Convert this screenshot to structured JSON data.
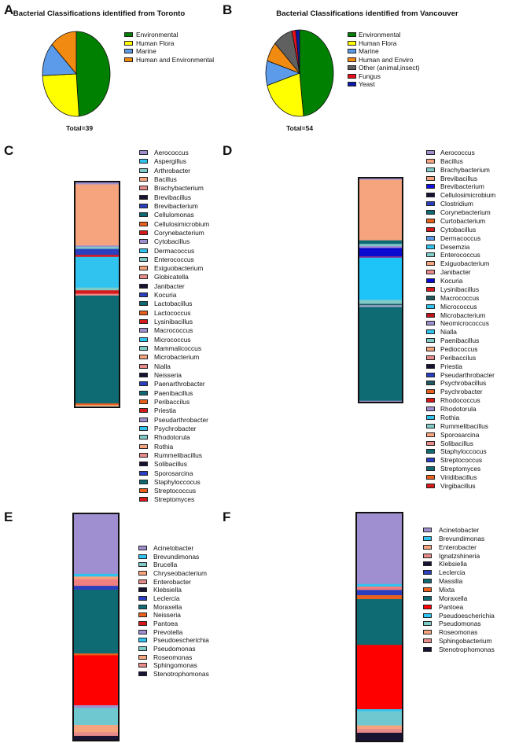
{
  "panels": [
    "A",
    "B",
    "C",
    "D",
    "E",
    "F"
  ],
  "chart_data": [
    {
      "type": "pie",
      "panel": "A",
      "title": "Bacterial Classifications identified from Toronto",
      "total_label": "Total=39",
      "slices": [
        {
          "name": "Environmental",
          "value": 19,
          "color": "#008000"
        },
        {
          "name": "Human Flora",
          "value": 10,
          "color": "#ffff00"
        },
        {
          "name": "Marine",
          "value": 5,
          "color": "#5b9bea"
        },
        {
          "name": "Human and Environmental",
          "value": 5,
          "color": "#f08a10"
        }
      ]
    },
    {
      "type": "pie",
      "panel": "B",
      "title": "Bacterial Classifications identified from Vancouver",
      "total_label": "Total=54",
      "slices": [
        {
          "name": "Environmental",
          "value": 26,
          "color": "#008000"
        },
        {
          "name": "Human Flora",
          "value": 12,
          "color": "#ffff00"
        },
        {
          "name": "Marine",
          "value": 5,
          "color": "#5b9bea"
        },
        {
          "name": "Human and Enviro",
          "value": 4,
          "color": "#f08a10"
        },
        {
          "name": "Other (animal,insect)",
          "value": 5,
          "color": "#606060"
        },
        {
          "name": "Fungus",
          "value": 1,
          "color": "#e8101a"
        },
        {
          "name": "Yeast",
          "value": 1,
          "color": "#0a1aa8"
        }
      ]
    },
    {
      "type": "bar",
      "panel": "C",
      "stacked": true,
      "ylim": [
        0,
        100
      ],
      "legend": [
        {
          "name": "Aerococcus",
          "color": "#a08fd0"
        },
        {
          "name": "Aspergillus",
          "color": "#31c3f0"
        },
        {
          "name": "Arthrobacter",
          "color": "#7ecbc8"
        },
        {
          "name": "Bacillus",
          "color": "#f6a47e"
        },
        {
          "name": "Brachybacterium",
          "color": "#e88a8a"
        },
        {
          "name": "Brevibacillus",
          "color": "#1a1233"
        },
        {
          "name": "Brevibacterium",
          "color": "#2a3fbf"
        },
        {
          "name": "Cellulomonas",
          "color": "#0f6b73"
        },
        {
          "name": "Cellulosimicrobium",
          "color": "#e8601c"
        },
        {
          "name": "Corynebacterium",
          "color": "#d7191c"
        },
        {
          "name": "Cytobacillus",
          "color": "#a08fd0"
        },
        {
          "name": "Dermacoccus",
          "color": "#31c3f0"
        },
        {
          "name": "Enterococcus",
          "color": "#7ecbc8"
        },
        {
          "name": "Exiguobacterium",
          "color": "#f6a47e"
        },
        {
          "name": "Globicatella",
          "color": "#e88a8a"
        },
        {
          "name": "Janibacter",
          "color": "#1a1233"
        },
        {
          "name": "Kocuria",
          "color": "#2a3fbf"
        },
        {
          "name": "Lactobacillus",
          "color": "#0f6b73"
        },
        {
          "name": "Lactococcus",
          "color": "#e8601c"
        },
        {
          "name": "Lysinibacillus",
          "color": "#d7191c"
        },
        {
          "name": "Macrococcus",
          "color": "#a08fd0"
        },
        {
          "name": "Micrococcus",
          "color": "#31c3f0"
        },
        {
          "name": "Mammalicoccus",
          "color": "#7ecbc8"
        },
        {
          "name": "Microbacterium",
          "color": "#f6a47e"
        },
        {
          "name": "Nialla",
          "color": "#e88a8a"
        },
        {
          "name": "Neisseria",
          "color": "#1a1233"
        },
        {
          "name": "Paenarthrobacter",
          "color": "#2a3fbf"
        },
        {
          "name": "Paenibacillus",
          "color": "#0f6b73"
        },
        {
          "name": "Peribaccilus",
          "color": "#e8601c"
        },
        {
          "name": "Priestia",
          "color": "#d7191c"
        },
        {
          "name": "Pseudarthrobacter",
          "color": "#a08fd0"
        },
        {
          "name": "Psychrobacter",
          "color": "#31c3f0"
        },
        {
          "name": "Rhodotorula",
          "color": "#7ecbc8"
        },
        {
          "name": "Rothia",
          "color": "#f6a47e"
        },
        {
          "name": "Rummelibacillus",
          "color": "#e88a8a"
        },
        {
          "name": "Solibacillus",
          "color": "#1a1233"
        },
        {
          "name": "Sporosarcina",
          "color": "#2a3fbf"
        },
        {
          "name": "Staphyloccocus",
          "color": "#0f6b73"
        },
        {
          "name": "Streptococcus",
          "color": "#e8601c"
        },
        {
          "name": "Streptomyces",
          "color": "#d7191c"
        }
      ],
      "segments": [
        {
          "name": "Aerococcus",
          "value": 1.2,
          "color": "#a08fd0"
        },
        {
          "name": "Bacillus",
          "value": 26.7,
          "color": "#f6a47e"
        },
        {
          "name": "Cytobacillus",
          "value": 0.6,
          "color": "#a08fd0"
        },
        {
          "name": "Enterococcus",
          "value": 0.9,
          "color": "#7ecbc8"
        },
        {
          "name": "Kocuria",
          "value": 2.6,
          "color": "#2a3fbf"
        },
        {
          "name": "Lysinibacillus",
          "value": 0.9,
          "color": "#d7191c"
        },
        {
          "name": "Micrococcus",
          "value": 13.4,
          "color": "#31c3f0"
        },
        {
          "name": "Mammalicoccus",
          "value": 1.2,
          "color": "#7ecbc8"
        },
        {
          "name": "Corynebacterium",
          "value": 1.5,
          "color": "#d7191c"
        },
        {
          "name": "Brachybacterium",
          "value": 0.8,
          "color": "#e88a8a"
        },
        {
          "name": "Staphyloccocus",
          "value": 47.1,
          "color": "#0f6b73"
        },
        {
          "name": "Streptococcus",
          "value": 0.9,
          "color": "#e8601c"
        },
        {
          "name": "Rothia",
          "value": 0.8,
          "color": "#f6e4c8"
        }
      ]
    },
    {
      "type": "bar",
      "panel": "D",
      "stacked": true,
      "ylim": [
        0,
        100
      ],
      "legend": [
        {
          "name": "Aerococcus",
          "color": "#a08fd0"
        },
        {
          "name": "Bacillus",
          "color": "#f6a47e"
        },
        {
          "name": "Brachybacterium",
          "color": "#7ecbc8"
        },
        {
          "name": "Brevibacillus",
          "color": "#f6a47e"
        },
        {
          "name": "Brevibacterium",
          "color": "#1010e0"
        },
        {
          "name": "Cellulosimicrobium",
          "color": "#1a1233"
        },
        {
          "name": "Clostridium",
          "color": "#2a3fbf"
        },
        {
          "name": "Corynebacterium",
          "color": "#0f6b73"
        },
        {
          "name": "Curtobacterium",
          "color": "#e8601c"
        },
        {
          "name": "Cytobacillus",
          "color": "#d7191c"
        },
        {
          "name": "Dermacoccus",
          "color": "#5b9bea"
        },
        {
          "name": "Desemzia",
          "color": "#31c3f0"
        },
        {
          "name": "Enterococcus",
          "color": "#7ecbc8"
        },
        {
          "name": "Exiguobacterium",
          "color": "#f6a47e"
        },
        {
          "name": "Janibacter",
          "color": "#e88a8a"
        },
        {
          "name": "Kocuria",
          "color": "#0a0ad0"
        },
        {
          "name": "Lysinibacillus",
          "color": "#d7191c"
        },
        {
          "name": "Macrococcus",
          "color": "#1f5a60"
        },
        {
          "name": "Micrococcus",
          "color": "#31c3f0"
        },
        {
          "name": "Microbacterium",
          "color": "#c0141a"
        },
        {
          "name": "Neomicrococcus",
          "color": "#a08fd0"
        },
        {
          "name": "Nialla",
          "color": "#31c3f0"
        },
        {
          "name": "Paenibacillus",
          "color": "#7ecbc8"
        },
        {
          "name": "Pediococcus",
          "color": "#f6a47e"
        },
        {
          "name": "Peribaccilus",
          "color": "#e88a8a"
        },
        {
          "name": "Priestia",
          "color": "#1a1233"
        },
        {
          "name": "Pseudarthrobacter",
          "color": "#2a3fbf"
        },
        {
          "name": "Psychrobacillus",
          "color": "#1f5a60"
        },
        {
          "name": "Psychrobacter",
          "color": "#e8601c"
        },
        {
          "name": "Rhodococcus",
          "color": "#d7191c"
        },
        {
          "name": "Rhodotorula",
          "color": "#a08fd0"
        },
        {
          "name": "Rothia",
          "color": "#31c3f0"
        },
        {
          "name": "Rummelibacillus",
          "color": "#7ecbc8"
        },
        {
          "name": "Sporosarcina",
          "color": "#f6a47e"
        },
        {
          "name": "Solibacillus",
          "color": "#e88a8a"
        },
        {
          "name": "Staphyloccocus",
          "color": "#0f6b73"
        },
        {
          "name": "Streptococcus",
          "color": "#2a3fbf"
        },
        {
          "name": "Streptomyces",
          "color": "#0f6b73"
        },
        {
          "name": "Viridibacillus",
          "color": "#e8601c"
        },
        {
          "name": "Virgibacillus",
          "color": "#d7191c"
        }
      ],
      "segments": [
        {
          "name": "Aerococcus",
          "value": 0.9,
          "color": "#a08fd0"
        },
        {
          "name": "Bacillus",
          "value": 26.9,
          "color": "#f6a47e"
        },
        {
          "name": "Corynebacterium",
          "value": 1.6,
          "color": "#0f6b73"
        },
        {
          "name": "Dermacoccus",
          "value": 0.9,
          "color": "#7ecbc8"
        },
        {
          "name": "Neomicrococcus",
          "value": 0.9,
          "color": "#a08fd0"
        },
        {
          "name": "Kocuria",
          "value": 3.7,
          "color": "#0a0ad0"
        },
        {
          "name": "Lysinibacillus",
          "value": 0.6,
          "color": "#8a2a8a"
        },
        {
          "name": "Micrococcus",
          "value": 18.7,
          "color": "#1ec3f8"
        },
        {
          "name": "Paenibacillus",
          "value": 1.8,
          "color": "#7ecbc8"
        },
        {
          "name": "Macrococcus",
          "value": 0.6,
          "color": "#1f5a60"
        },
        {
          "name": "Rhodotorula",
          "value": 0.8,
          "color": "#a0a8d0"
        },
        {
          "name": "Staphyloccocus",
          "value": 41.6,
          "color": "#0f6b73"
        },
        {
          "name": "Aerococcus",
          "value": 0.8,
          "color": "#a08fd0"
        }
      ]
    },
    {
      "type": "bar",
      "panel": "E",
      "stacked": true,
      "ylim": [
        0,
        100
      ],
      "legend": [
        {
          "name": "Acinetobacter",
          "color": "#a08fd0"
        },
        {
          "name": "Brevundimonas",
          "color": "#31c3f0"
        },
        {
          "name": "Brucella",
          "color": "#7ecbc8"
        },
        {
          "name": "Chryseobacterium",
          "color": "#f6a47e"
        },
        {
          "name": "Enterobacter",
          "color": "#e88a8a"
        },
        {
          "name": "Klebsiella",
          "color": "#1a1233"
        },
        {
          "name": "Leclercia",
          "color": "#2a3fbf"
        },
        {
          "name": "Moraxella",
          "color": "#0f6b73"
        },
        {
          "name": "Neisseria",
          "color": "#e8601c"
        },
        {
          "name": "Pantoea",
          "color": "#d7191c"
        },
        {
          "name": "Prevotella",
          "color": "#a08fd0"
        },
        {
          "name": "Pseudoescherichia",
          "color": "#31c3f0"
        },
        {
          "name": "Pseudomonas",
          "color": "#7ecbc8"
        },
        {
          "name": "Roseomonas",
          "color": "#f6a47e"
        },
        {
          "name": "Sphingomonas",
          "color": "#e88a8a"
        },
        {
          "name": "Stenotrophomonas",
          "color": "#1a1233"
        }
      ],
      "segments": [
        {
          "name": "Acinetobacter",
          "value": 26.6,
          "color": "#a08fd0"
        },
        {
          "name": "Brevundimonas",
          "value": 1.2,
          "color": "#31c3f0"
        },
        {
          "name": "Chryseobacterium",
          "value": 1.2,
          "color": "#f6a47e"
        },
        {
          "name": "Enterobacter",
          "value": 2.9,
          "color": "#f08080"
        },
        {
          "name": "Leclercia",
          "value": 1.7,
          "color": "#2a3fbf"
        },
        {
          "name": "Moraxella",
          "value": 28.1,
          "color": "#0f6b73"
        },
        {
          "name": "Neisseria",
          "value": 0.8,
          "color": "#e8601c"
        },
        {
          "name": "Pantoea",
          "value": 22.0,
          "color": "#ff0000"
        },
        {
          "name": "Prevotella",
          "value": 1.2,
          "color": "#a08fd0"
        },
        {
          "name": "Pseudomonas",
          "value": 7.5,
          "color": "#6fc8d0"
        },
        {
          "name": "Roseomonas",
          "value": 3.2,
          "color": "#f6a47e"
        },
        {
          "name": "Sphingomonas",
          "value": 1.6,
          "color": "#e88a8a"
        },
        {
          "name": "Stenotrophomonas",
          "value": 2.1,
          "color": "#1a1233"
        }
      ]
    },
    {
      "type": "bar",
      "panel": "F",
      "stacked": true,
      "ylim": [
        0,
        100
      ],
      "legend": [
        {
          "name": "Acinetobacter",
          "color": "#a08fd0"
        },
        {
          "name": "Brevundimonas",
          "color": "#31c3f0"
        },
        {
          "name": "Enterobacter",
          "color": "#f6a47e"
        },
        {
          "name": "Ignatzshineria",
          "color": "#e88a8a"
        },
        {
          "name": "Klebsiella",
          "color": "#1a1233"
        },
        {
          "name": "Leclercia",
          "color": "#2a3fbf"
        },
        {
          "name": "Massilia",
          "color": "#0f6b73"
        },
        {
          "name": "Mixta",
          "color": "#e8601c"
        },
        {
          "name": "Moraxella",
          "color": "#0f6b73"
        },
        {
          "name": "Pantoea",
          "color": "#ff0000"
        },
        {
          "name": "Pseudoescherichia",
          "color": "#31c3f0"
        },
        {
          "name": "Pseudomonas",
          "color": "#7ecbc8"
        },
        {
          "name": "Roseomonas",
          "color": "#f6a47e"
        },
        {
          "name": "Sphingobacterium",
          "color": "#e88a8a"
        },
        {
          "name": "Stenotrophomonas",
          "color": "#1a1233"
        }
      ],
      "segments": [
        {
          "name": "Acinetobacter",
          "value": 31.2,
          "color": "#a08fd0"
        },
        {
          "name": "Brevundimonas",
          "value": 1.1,
          "color": "#31c3f0"
        },
        {
          "name": "Ignatzshineria",
          "value": 1.5,
          "color": "#f08080"
        },
        {
          "name": "Leclercia",
          "value": 2.3,
          "color": "#2a3fbf"
        },
        {
          "name": "Mixta",
          "value": 1.7,
          "color": "#e8601c"
        },
        {
          "name": "Moraxella",
          "value": 20.0,
          "color": "#0f6b73"
        },
        {
          "name": "Pantoea",
          "value": 28.1,
          "color": "#ff0000"
        },
        {
          "name": "Pseudoescherichia",
          "value": 0.9,
          "color": "#31c3f0"
        },
        {
          "name": "Pseudomonas",
          "value": 6.2,
          "color": "#6fc8d0"
        },
        {
          "name": "Roseomonas",
          "value": 1.5,
          "color": "#f6a47e"
        },
        {
          "name": "Sphingobacterium",
          "value": 1.7,
          "color": "#e88a8a"
        },
        {
          "name": "Stenotrophomonas",
          "value": 3.8,
          "color": "#1a1233"
        }
      ]
    }
  ]
}
